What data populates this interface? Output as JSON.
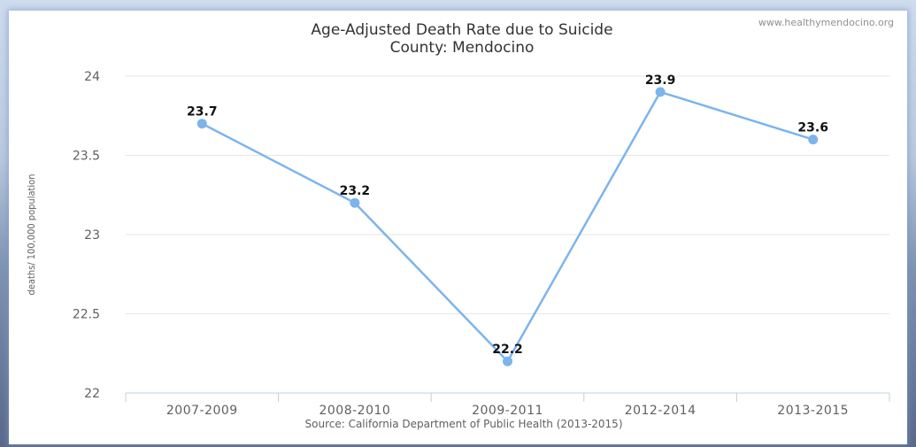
{
  "chart_data": {
    "type": "line",
    "title": "Age-Adjusted Death Rate due to Suicide",
    "subtitle": "County: Mendocino",
    "credit": "www.healthymendocino.org",
    "ylabel": "deaths/ 100,000 population",
    "source": "Source: California Department of Public Health (2013-2015)",
    "categories": [
      "2007-2009",
      "2008-2010",
      "2009-2011",
      "2012-2014",
      "2013-2015"
    ],
    "values": [
      23.7,
      23.2,
      22.2,
      23.9,
      23.6
    ],
    "data_labels": [
      "23.7",
      "23.2",
      "22.2",
      "23.9",
      "23.6"
    ],
    "ylim": [
      22,
      24
    ],
    "yticks": [
      22,
      22.5,
      23,
      23.5,
      24
    ],
    "ytick_labels": [
      "22",
      "22.5",
      "23",
      "23.5",
      "24"
    ],
    "grid": true,
    "line_color": "#7cb5ec",
    "legend": "none"
  }
}
